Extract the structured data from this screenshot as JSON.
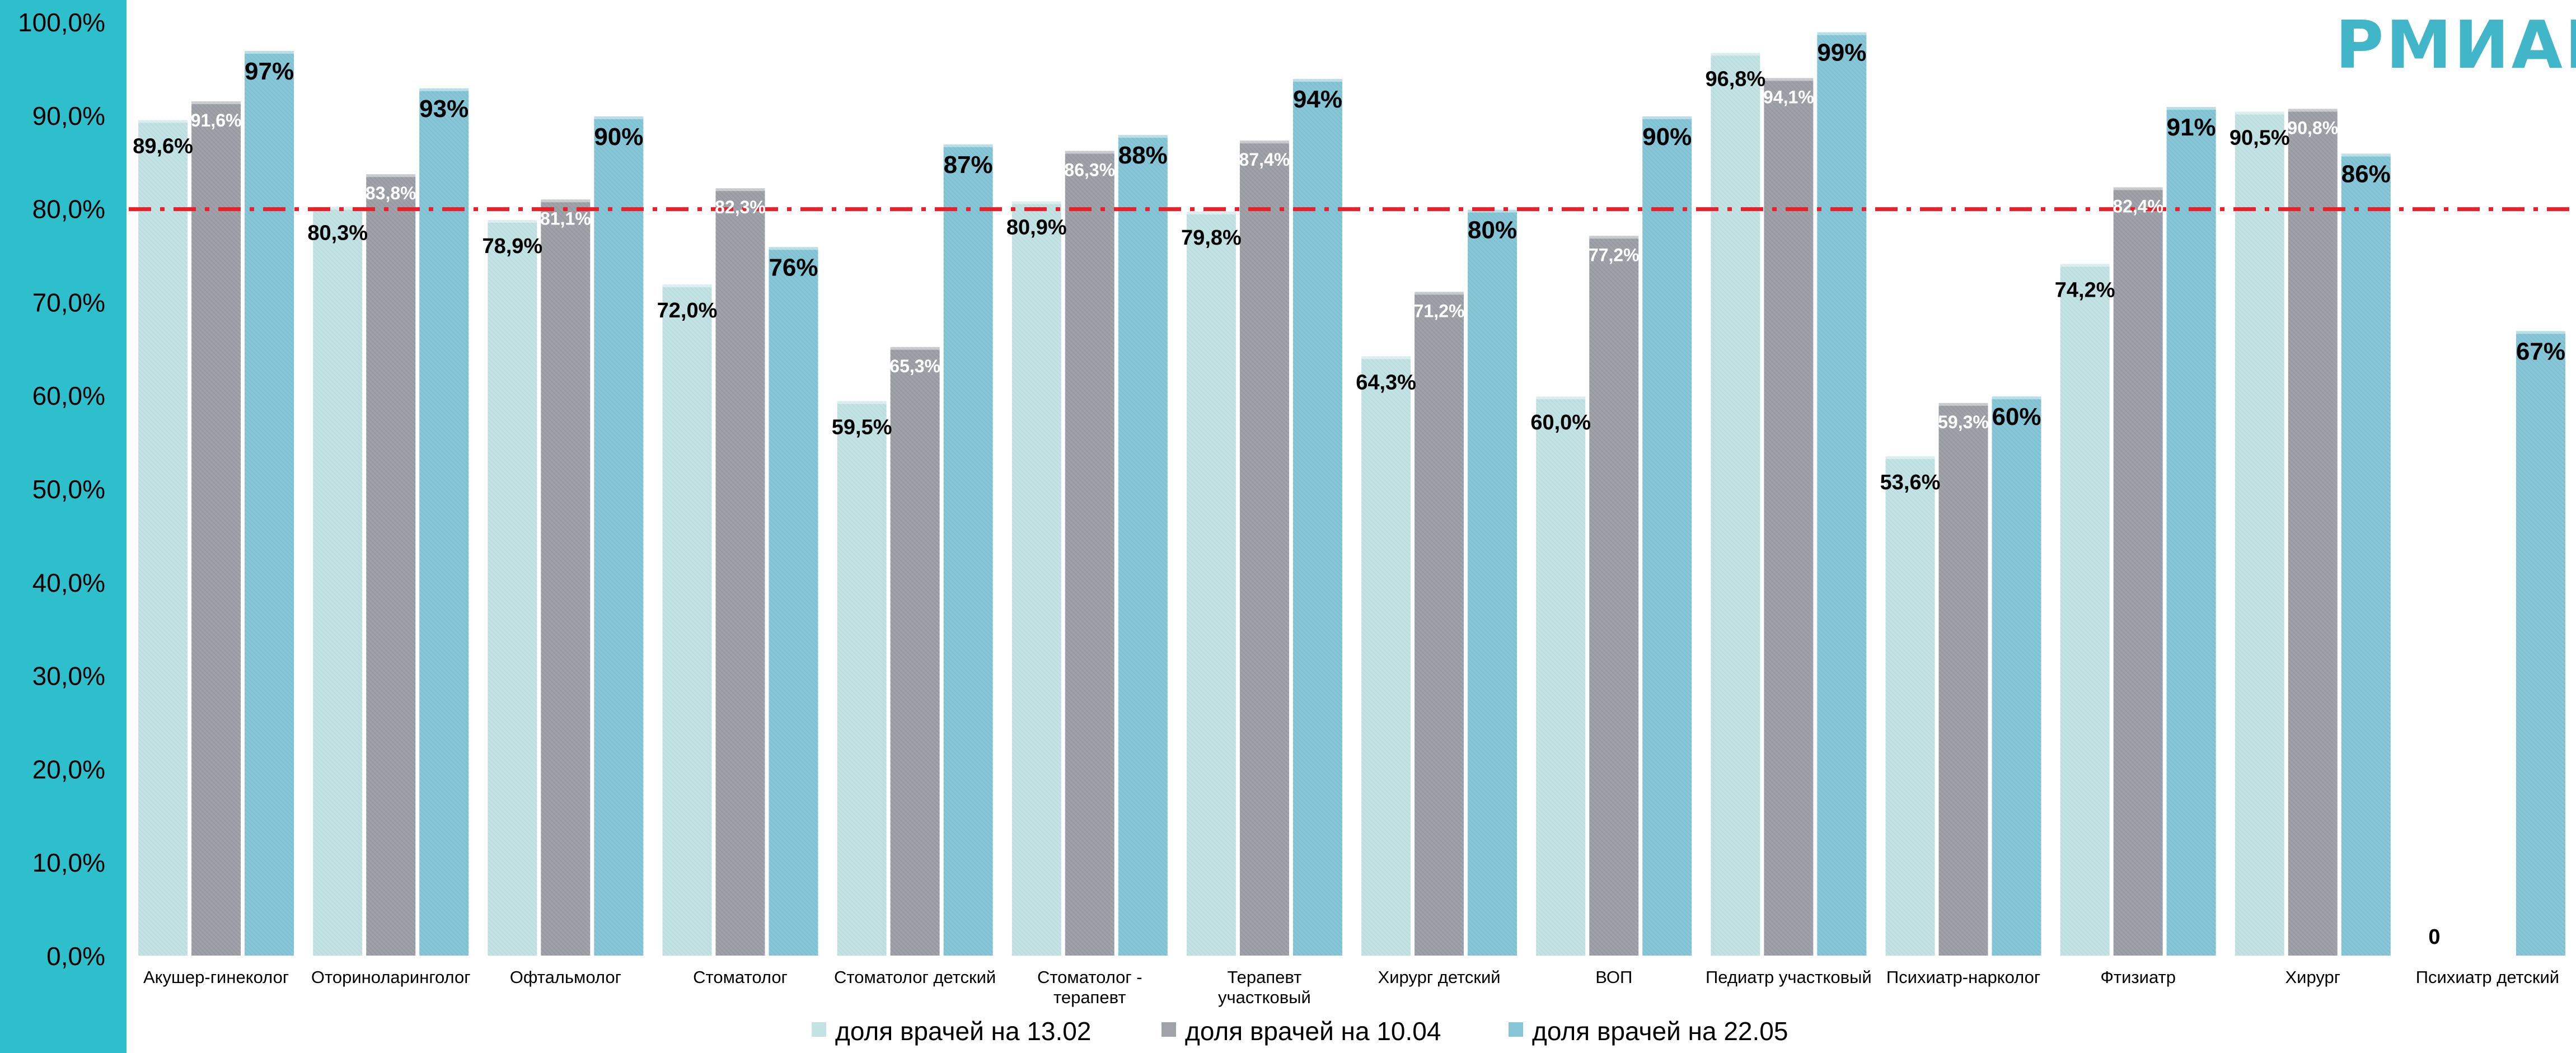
{
  "logo": {
    "text": "РМИАЦ"
  },
  "chart_data": {
    "type": "bar",
    "categories": [
      "Акушер-гинеколог",
      "Оториноларинголог",
      "Офтальмолог",
      "Стоматолог",
      "Стоматолог детский",
      "Стоматолог - терапевт",
      "Терапевт участковый",
      "Хирург детский",
      "ВОП",
      "Педиатр участковый",
      "Психиатр-нарколог",
      "Фтизиатр",
      "Хирург",
      "Психиатр детский"
    ],
    "series": [
      {
        "name": "доля врачей  на 13.02",
        "color": "#c3e2e4",
        "values": [
          89.6,
          80.3,
          78.9,
          72.0,
          59.5,
          80.9,
          79.8,
          64.3,
          60.0,
          96.8,
          53.6,
          74.2,
          90.5,
          0
        ],
        "labels": [
          "89,6%",
          "80,3%",
          "78,9%",
          "72,0%",
          "59,5%",
          "80,9%",
          "79,8%",
          "64,3%",
          "60,0%",
          "96,8%",
          "53,6%",
          "74,2%",
          "90,5%",
          "0"
        ]
      },
      {
        "name": "доля врачей на 10.04",
        "color": "#9fa2a8",
        "values": [
          91.6,
          83.8,
          81.1,
          82.3,
          65.3,
          86.3,
          87.4,
          71.2,
          77.2,
          94.1,
          59.3,
          82.4,
          90.8,
          null
        ],
        "labels": [
          "91,6%",
          "83,8%",
          "81,1%",
          "82,3%",
          "65,3%",
          "86,3%",
          "87,4%",
          "71,2%",
          "77,2%",
          "94,1%",
          "59,3%",
          "82,4%",
          "90,8%",
          ""
        ]
      },
      {
        "name": "доля врачей на 22.05",
        "color": "#86c6d6",
        "values": [
          97,
          93,
          90,
          76,
          87,
          88,
          94,
          80,
          90,
          99,
          60,
          91,
          86,
          67
        ],
        "labels": [
          "97%",
          "93%",
          "90%",
          "76%",
          "87%",
          "88%",
          "94%",
          "80%",
          "90%",
          "99%",
          "60%",
          "91%",
          "86%",
          "67%"
        ]
      }
    ],
    "y_ticks": [
      "0,0%",
      "10,0%",
      "20,0%",
      "30,0%",
      "40,0%",
      "50,0%",
      "60,0%",
      "70,0%",
      "80,0%",
      "90,0%",
      "100,0%"
    ],
    "ylim": [
      0,
      100
    ],
    "reference_line": {
      "value": 80,
      "color": "#e8202a",
      "style": "dash-dot"
    },
    "grid": false,
    "legend_position": "bottom"
  }
}
